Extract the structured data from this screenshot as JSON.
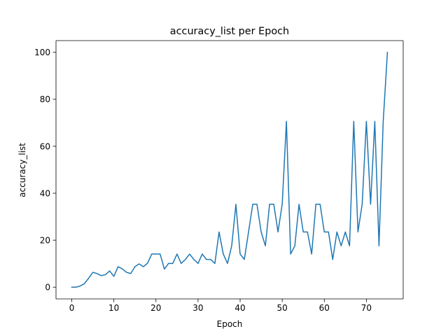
{
  "chart_data": {
    "type": "line",
    "title": "accuracy_list per Epoch",
    "xlabel": "Epoch",
    "ylabel": "accuracy_list",
    "xlim": [
      -3.75,
      78.75
    ],
    "ylim": [
      -5,
      105
    ],
    "xticks": [
      0,
      10,
      20,
      30,
      40,
      50,
      60,
      70
    ],
    "yticks": [
      0,
      20,
      40,
      60,
      80,
      100
    ],
    "grid": false,
    "legend": "none",
    "series": [
      {
        "color": "#1f77b4",
        "x": [
          0,
          1,
          2,
          3,
          4,
          5,
          6,
          7,
          8,
          9,
          10,
          11,
          12,
          13,
          14,
          15,
          16,
          17,
          18,
          19,
          20,
          21,
          22,
          23,
          24,
          25,
          26,
          27,
          28,
          29,
          30,
          31,
          32,
          33,
          34,
          35,
          36,
          37,
          38,
          39,
          40,
          41,
          42,
          43,
          44,
          45,
          46,
          47,
          48,
          49,
          50,
          51,
          52,
          53,
          54,
          55,
          56,
          57,
          58,
          59,
          60,
          61,
          62,
          63,
          64,
          65,
          66,
          67,
          68,
          69,
          70,
          71,
          72,
          73,
          74,
          75
        ],
        "y": [
          0,
          0,
          0.5,
          1.5,
          3.8,
          6.3,
          5.8,
          4.9,
          5.3,
          6.9,
          4.6,
          8.7,
          7.8,
          6.3,
          5.8,
          8.7,
          9.9,
          8.7,
          10.2,
          14.1,
          14.1,
          14.1,
          7.7,
          10.1,
          10.1,
          14.1,
          10.1,
          11.8,
          14.1,
          11.8,
          10.1,
          14.1,
          11.8,
          11.8,
          10.1,
          23.5,
          14.1,
          10.1,
          17.6,
          35.3,
          14.1,
          11.8,
          23.5,
          35.3,
          35.3,
          23.5,
          17.6,
          35.3,
          35.3,
          23.5,
          35.3,
          70.6,
          14.1,
          17.6,
          35.3,
          23.5,
          23.5,
          14.1,
          35.3,
          35.3,
          23.5,
          23.5,
          11.8,
          23.5,
          17.6,
          23.5,
          17.6,
          70.6,
          23.5,
          35.3,
          70.6,
          35.3,
          70.6,
          17.6,
          70.6,
          100
        ]
      }
    ]
  }
}
